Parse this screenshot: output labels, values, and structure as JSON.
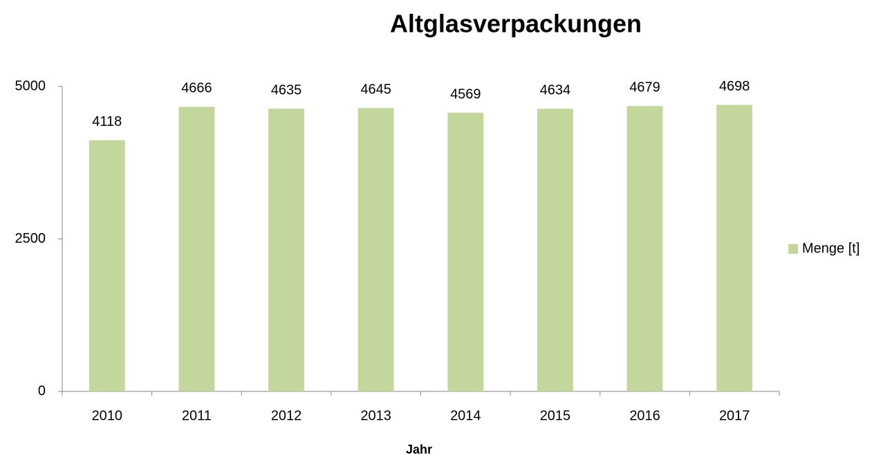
{
  "chart_data": {
    "type": "bar",
    "title": "Altglasverpackungen",
    "xlabel": "Jahr",
    "categories": [
      "2010",
      "2011",
      "2012",
      "2013",
      "2014",
      "2015",
      "2016",
      "2017"
    ],
    "series": [
      {
        "name": "Menge [t]",
        "color": "#c3d69b",
        "values": [
          4118,
          4666,
          4635,
          4645,
          4569,
          4634,
          4679,
          4698
        ]
      }
    ],
    "ylim": [
      0,
      5000
    ],
    "yticks": [
      0,
      2500,
      5000
    ],
    "grid": false,
    "legend": "right",
    "data_labels": true
  }
}
